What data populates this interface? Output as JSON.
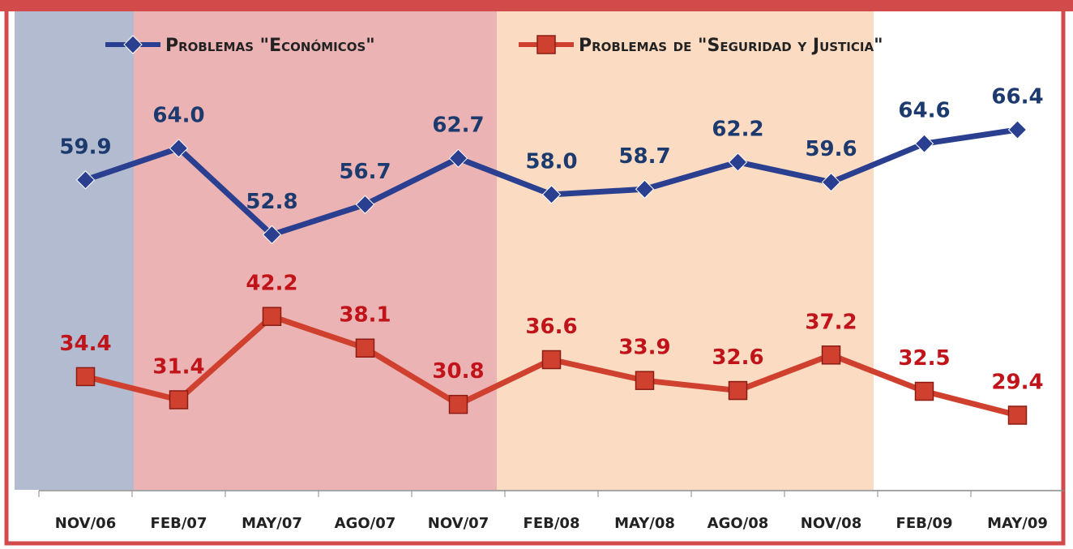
{
  "chart_data": {
    "type": "line",
    "categories": [
      "NOV/06",
      "FEB/07",
      "MAY/07",
      "AGO/07",
      "NOV/07",
      "FEB/08",
      "MAY/08",
      "AGO/08",
      "NOV/08",
      "FEB/09",
      "MAY/09"
    ],
    "series": [
      {
        "name": "Problemas \"Económicos\"",
        "color": "#2a3f8f",
        "label_color": "#1d3a6e",
        "marker": "diamond",
        "values": [
          59.9,
          64.0,
          52.8,
          56.7,
          62.7,
          58.0,
          58.7,
          62.2,
          59.6,
          64.6,
          66.4
        ],
        "value_labels": [
          "59.9",
          "64.0",
          "52.8",
          "56.7",
          "62.7",
          "58.0",
          "58.7",
          "62.2",
          "59.6",
          "64.6",
          "66.4"
        ]
      },
      {
        "name": "Problemas de \"Seguridad y Justicia\"",
        "color": "#d0402e",
        "label_color": "#c0141a",
        "marker": "square",
        "values": [
          34.4,
          31.4,
          42.2,
          38.1,
          30.8,
          36.6,
          33.9,
          32.6,
          37.2,
          32.5,
          29.4
        ],
        "value_labels": [
          "34.4",
          "31.4",
          "42.2",
          "38.1",
          "30.8",
          "36.6",
          "33.9",
          "32.6",
          "37.2",
          "32.5",
          "29.4"
        ]
      }
    ],
    "legend": "top"
  }
}
